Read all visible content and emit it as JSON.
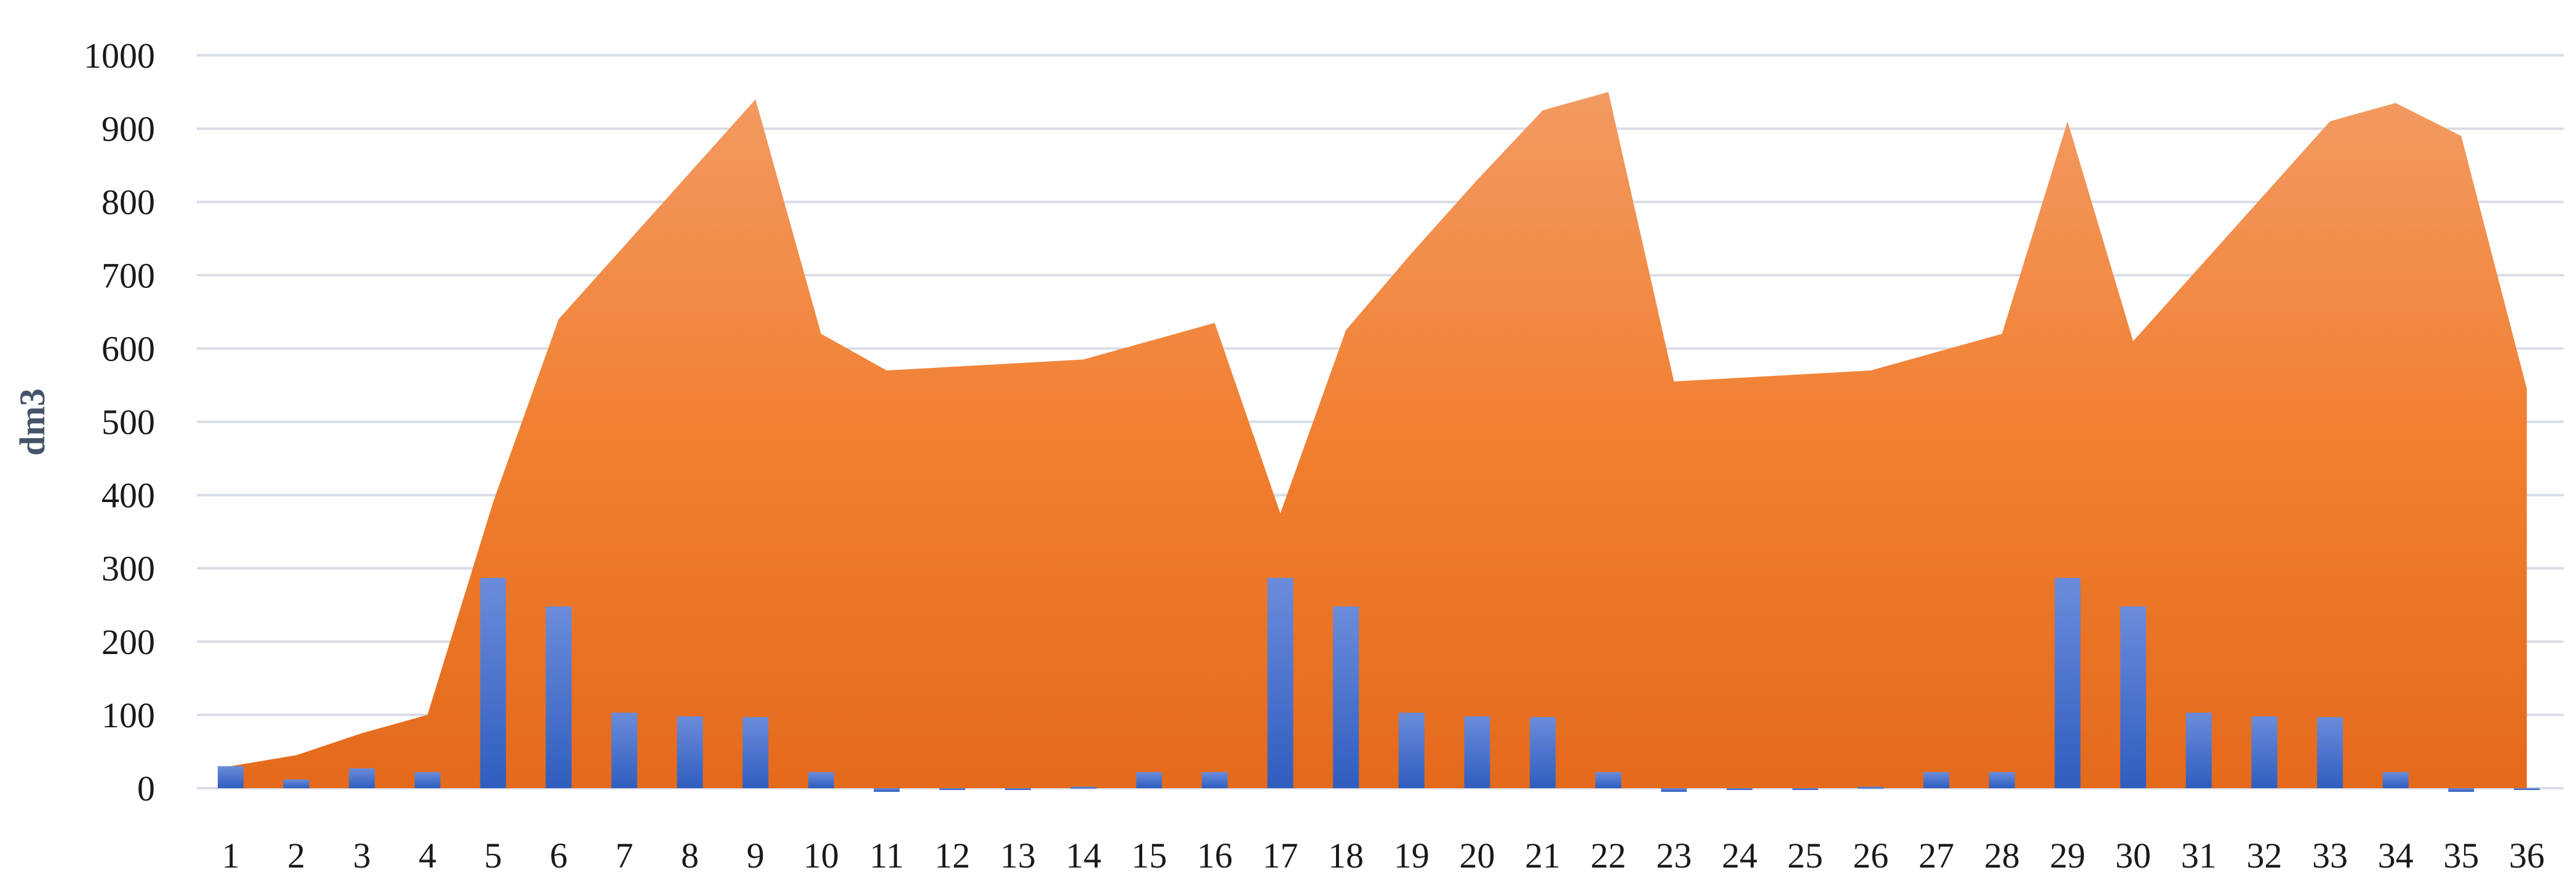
{
  "chart_data": {
    "type": "bar",
    "title": "",
    "xlabel": "",
    "ylabel": "dm3",
    "ylim": [
      0,
      1000
    ],
    "yticks": [
      0,
      100,
      200,
      300,
      400,
      500,
      600,
      700,
      800,
      900,
      1000
    ],
    "grid": true,
    "legend": "none",
    "categories": [
      "1",
      "2",
      "3",
      "4",
      "5",
      "6",
      "7",
      "8",
      "9",
      "10",
      "11",
      "12",
      "13",
      "14",
      "15",
      "16",
      "17",
      "18",
      "19",
      "20",
      "21",
      "22",
      "23",
      "24",
      "25",
      "26",
      "27",
      "28",
      "29",
      "30",
      "31",
      "32",
      "33",
      "34",
      "35",
      "36"
    ],
    "series": [
      {
        "type": "area",
        "color": "#ED7D31",
        "values": [
          30,
          45,
          75,
          100,
          390,
          640,
          740,
          840,
          940,
          620,
          570,
          575,
          580,
          585,
          610,
          635,
          375,
          625,
          730,
          830,
          925,
          950,
          555,
          560,
          565,
          570,
          595,
          620,
          910,
          610,
          710,
          810,
          910,
          935,
          890,
          545
        ]
      },
      {
        "type": "bar",
        "color": "#4472C4",
        "values": [
          30,
          12,
          27,
          22,
          287,
          248,
          103,
          98,
          97,
          22,
          -5,
          0,
          0,
          2,
          22,
          22,
          287,
          248,
          103,
          98,
          97,
          22,
          -5,
          0,
          0,
          2,
          22,
          22,
          287,
          248,
          103,
          98,
          97,
          22,
          -5,
          0
        ]
      }
    ]
  }
}
